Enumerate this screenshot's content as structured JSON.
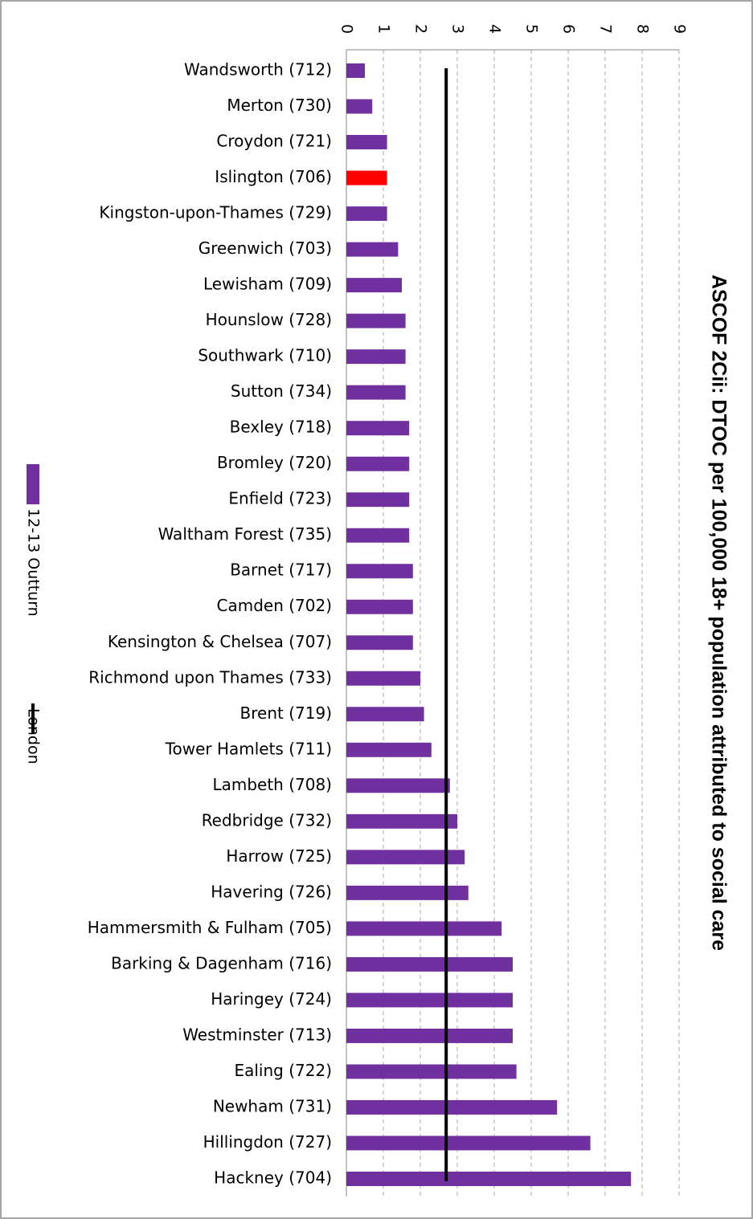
{
  "chart_data": {
    "type": "bar",
    "orientation": "horizontal",
    "title": "ASCOF 2Cii: DTOC per 100,000 18+ population attributed to social care",
    "categories": [
      "Wandsworth (712)",
      "Merton (730)",
      "Croydon (721)",
      "Islington (706)",
      "Kingston-upon-Thames (729)",
      "Greenwich (703)",
      "Lewisham (709)",
      "Hounslow (728)",
      "Southwark (710)",
      "Sutton (734)",
      "Bexley (718)",
      "Bromley (720)",
      "Enfield (723)",
      "Waltham Forest (735)",
      "Barnet (717)",
      "Camden (702)",
      "Kensington & Chelsea (707)",
      "Richmond upon Thames (733)",
      "Brent (719)",
      "Tower Hamlets (711)",
      "Lambeth (708)",
      "Redbridge (732)",
      "Harrow (725)",
      "Havering (726)",
      "Hammersmith & Fulham (705)",
      "Barking & Dagenham (716)",
      "Haringey (724)",
      "Westminster (713)",
      "Ealing (722)",
      "Newham (731)",
      "Hillingdon (727)",
      "Hackney (704)"
    ],
    "series": [
      {
        "name": "12-13 Outturn",
        "color": "#7030a0",
        "values": [
          0.5,
          0.7,
          1.1,
          1.1,
          1.1,
          1.4,
          1.5,
          1.6,
          1.6,
          1.6,
          1.7,
          1.7,
          1.7,
          1.7,
          1.8,
          1.8,
          1.8,
          2.0,
          2.1,
          2.3,
          2.8,
          3.0,
          3.2,
          3.3,
          4.2,
          4.5,
          4.5,
          4.5,
          4.6,
          5.7,
          6.6,
          7.7
        ],
        "point_colors": {
          "3": "#ff0000"
        }
      }
    ],
    "reference_line": {
      "name": "London",
      "value": 2.7,
      "color": "#000000"
    },
    "xlim": [
      0,
      9
    ],
    "xticks": [
      0,
      1,
      2,
      3,
      4,
      5,
      6,
      7,
      8,
      9
    ],
    "grid": true,
    "legend": "left"
  }
}
